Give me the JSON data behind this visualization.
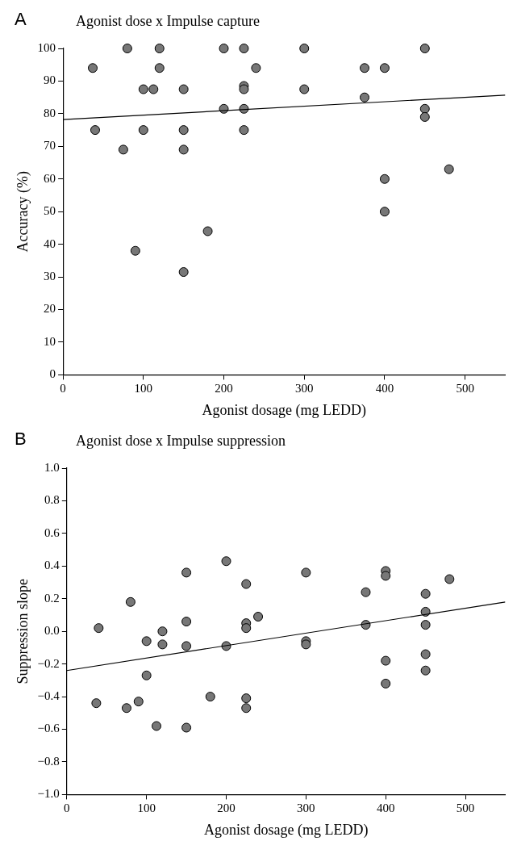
{
  "chart_data": [
    {
      "type": "scatter",
      "title": "Agonist dose x Impulse capture",
      "xlabel": "Agonist dosage (mg LEDD)",
      "ylabel": "Accuracy (%)",
      "annotations": [
        "A"
      ],
      "xlim": [
        0,
        550
      ],
      "xticks": [
        0,
        100,
        200,
        300,
        400,
        500
      ],
      "ylim": [
        0,
        100
      ],
      "yticks": [
        0,
        10,
        20,
        30,
        40,
        50,
        60,
        70,
        80,
        90,
        100
      ],
      "grid": false,
      "legend": false,
      "series": [
        {
          "marker": "circle",
          "color": "#777777",
          "x": [
            37,
            40,
            75,
            80,
            90,
            100,
            100,
            112.5,
            120,
            120,
            150,
            150,
            150,
            150,
            180,
            200,
            200,
            225,
            225,
            225,
            225,
            225,
            240,
            300,
            300,
            375,
            375,
            400,
            400,
            400,
            450,
            450,
            450,
            480
          ],
          "values": [
            94,
            75,
            69,
            100,
            38,
            87.5,
            75,
            87.5,
            100,
            94,
            87.5,
            75,
            69,
            31.5,
            44,
            100,
            81.5,
            100,
            88.5,
            87.5,
            81.5,
            75,
            94,
            100,
            87.5,
            94,
            85,
            94,
            60,
            50,
            100,
            81.5,
            79,
            63
          ]
        },
        {
          "type": "line",
          "marker": "none",
          "color": "#000000",
          "x": [
            0,
            550
          ],
          "values": [
            78.2,
            85.7
          ]
        }
      ]
    },
    {
      "type": "scatter",
      "title": "Agonist dose x Impulse suppression",
      "xlabel": "Agonist dosage (mg LEDD)",
      "ylabel": "Suppression slope",
      "annotations": [
        "B"
      ],
      "xlim": [
        0,
        550
      ],
      "xticks": [
        0,
        100,
        200,
        300,
        400,
        500
      ],
      "ylim": [
        -1,
        1
      ],
      "yticks": [
        {
          "value": -1,
          "label": "−1.0"
        },
        {
          "value": -0.8,
          "label": "−0.8"
        },
        {
          "value": -0.6,
          "label": "−0.6"
        },
        {
          "value": -0.4,
          "label": "−0.4"
        },
        {
          "value": -0.2,
          "label": "−0.2"
        },
        {
          "value": 0,
          "label": "0.0"
        },
        {
          "value": 0.2,
          "label": "0.2"
        },
        {
          "value": 0.4,
          "label": "0.4"
        },
        {
          "value": 0.6,
          "label": "0.6"
        },
        {
          "value": 0.8,
          "label": "0.8"
        },
        {
          "value": 1,
          "label": "1.0"
        }
      ],
      "grid": false,
      "legend": false,
      "series": [
        {
          "marker": "circle",
          "color": "#777777",
          "x": [
            40,
            37,
            75,
            80,
            90,
            100,
            100,
            112.5,
            120,
            120,
            150,
            150,
            150,
            150,
            180,
            200,
            200,
            225,
            225,
            225,
            225,
            225,
            240,
            300,
            300,
            300,
            375,
            375,
            400,
            400,
            400,
            400,
            450,
            450,
            450,
            450,
            450,
            480
          ],
          "values": [
            0.02,
            -0.44,
            -0.47,
            0.18,
            -0.43,
            -0.06,
            -0.27,
            -0.58,
            0.0,
            -0.08,
            0.36,
            0.06,
            -0.09,
            -0.59,
            -0.4,
            0.43,
            -0.09,
            0.29,
            0.05,
            0.02,
            -0.41,
            -0.47,
            0.09,
            0.36,
            -0.06,
            -0.08,
            0.24,
            0.04,
            0.37,
            0.34,
            -0.18,
            -0.32,
            0.23,
            0.12,
            0.04,
            -0.14,
            -0.24,
            0.32
          ]
        },
        {
          "type": "line",
          "marker": "none",
          "color": "#000000",
          "x": [
            0,
            550
          ],
          "values": [
            -0.24,
            0.18
          ]
        }
      ]
    }
  ]
}
